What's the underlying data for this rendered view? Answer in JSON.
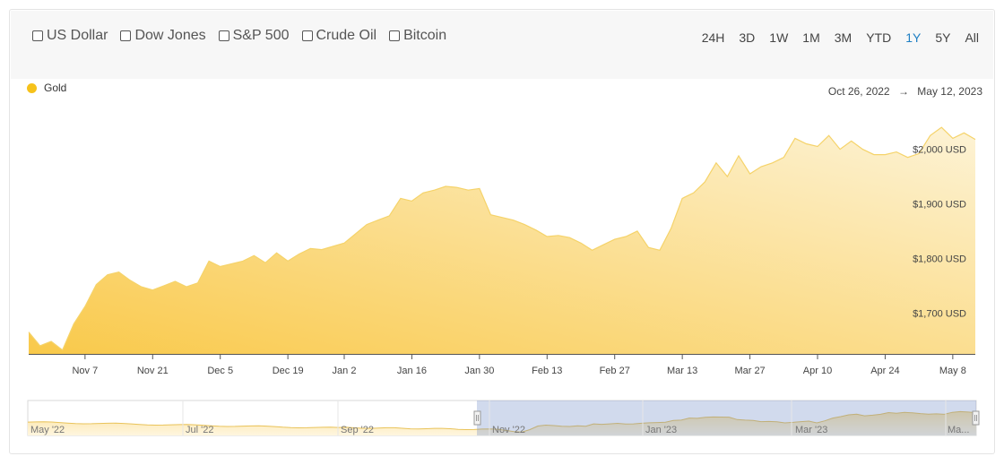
{
  "compare": {
    "items": [
      {
        "label": "US Dollar"
      },
      {
        "label": "Dow Jones"
      },
      {
        "label": "S&P 500"
      },
      {
        "label": "Crude Oil"
      },
      {
        "label": "Bitcoin"
      }
    ]
  },
  "ranges": {
    "items": [
      "24H",
      "3D",
      "1W",
      "1M",
      "3M",
      "YTD",
      "1Y",
      "5Y",
      "All"
    ],
    "active": "1Y"
  },
  "legend": {
    "label": "Gold",
    "color": "#f6c21b"
  },
  "date_range": {
    "start": "Oct 26, 2022",
    "arrow": "→",
    "end": "May 12, 2023"
  },
  "navigator": {
    "labels": [
      "May '22",
      "Jul '22",
      "Sep '22",
      "Nov '22",
      "Jan '23",
      "Mar '23",
      "Ma..."
    ]
  },
  "chart_data": {
    "type": "area",
    "series": [
      {
        "name": "Gold",
        "x": [
          "Oct 26",
          "Oct 28",
          "Oct 31",
          "Nov 2",
          "Nov 4",
          "Nov 7",
          "Nov 9",
          "Nov 11",
          "Nov 14",
          "Nov 16",
          "Nov 18",
          "Nov 21",
          "Nov 23",
          "Nov 25",
          "Nov 28",
          "Nov 30",
          "Dec 2",
          "Dec 5",
          "Dec 7",
          "Dec 9",
          "Dec 12",
          "Dec 14",
          "Dec 16",
          "Dec 19",
          "Dec 21",
          "Dec 23",
          "Dec 27",
          "Dec 29",
          "Jan 2",
          "Jan 4",
          "Jan 6",
          "Jan 9",
          "Jan 11",
          "Jan 13",
          "Jan 16",
          "Jan 18",
          "Jan 20",
          "Jan 23",
          "Jan 25",
          "Jan 27",
          "Jan 30",
          "Feb 1",
          "Feb 3",
          "Feb 6",
          "Feb 8",
          "Feb 10",
          "Feb 13",
          "Feb 15",
          "Feb 17",
          "Feb 20",
          "Feb 22",
          "Feb 24",
          "Feb 27",
          "Mar 1",
          "Mar 3",
          "Mar 6",
          "Mar 8",
          "Mar 10",
          "Mar 13",
          "Mar 15",
          "Mar 17",
          "Mar 20",
          "Mar 22",
          "Mar 24",
          "Mar 27",
          "Mar 29",
          "Mar 31",
          "Apr 3",
          "Apr 5",
          "Apr 7",
          "Apr 10",
          "Apr 12",
          "Apr 14",
          "Apr 17",
          "Apr 19",
          "Apr 21",
          "Apr 24",
          "Apr 26",
          "Apr 28",
          "May 1",
          "May 3",
          "May 5",
          "May 8",
          "May 10",
          "May 12"
        ],
        "values": [
          1665,
          1640,
          1648,
          1632,
          1680,
          1712,
          1752,
          1770,
          1775,
          1760,
          1748,
          1742,
          1750,
          1758,
          1748,
          1755,
          1795,
          1785,
          1790,
          1795,
          1805,
          1792,
          1810,
          1795,
          1808,
          1818,
          1816,
          1822,
          1828,
          1845,
          1862,
          1870,
          1878,
          1910,
          1905,
          1920,
          1925,
          1932,
          1930,
          1925,
          1928,
          1880,
          1875,
          1870,
          1862,
          1852,
          1840,
          1842,
          1838,
          1828,
          1815,
          1825,
          1835,
          1840,
          1850,
          1820,
          1815,
          1855,
          1910,
          1920,
          1940,
          1975,
          1950,
          1988,
          1955,
          1968,
          1975,
          1985,
          2020,
          2010,
          2005,
          2025,
          2000,
          2015,
          2000,
          1990,
          1990,
          1995,
          1985,
          1992,
          2025,
          2040,
          2020,
          2030,
          2018
        ]
      }
    ],
    "ylim": [
      1625,
      2060
    ],
    "yticks": [
      {
        "value": 1700,
        "label": "$1,700 USD"
      },
      {
        "value": 1800,
        "label": "$1,800 USD"
      },
      {
        "value": 1900,
        "label": "$1,900 USD"
      },
      {
        "value": 2000,
        "label": "$2,000 USD"
      }
    ],
    "xticks": [
      {
        "index": 5,
        "label": "Nov 7"
      },
      {
        "index": 11,
        "label": "Nov 21"
      },
      {
        "index": 17,
        "label": "Dec 5"
      },
      {
        "index": 23,
        "label": "Dec 19"
      },
      {
        "index": 28,
        "label": "Jan 2"
      },
      {
        "index": 34,
        "label": "Jan 16"
      },
      {
        "index": 40,
        "label": "Jan 30"
      },
      {
        "index": 46,
        "label": "Feb 13"
      },
      {
        "index": 52,
        "label": "Feb 27"
      },
      {
        "index": 58,
        "label": "Mar 13"
      },
      {
        "index": 64,
        "label": "Mar 27"
      },
      {
        "index": 70,
        "label": "Apr 10"
      },
      {
        "index": 76,
        "label": "Apr 24"
      },
      {
        "index": 82,
        "label": "May 8"
      }
    ],
    "grid": false,
    "legend": "top-left"
  }
}
